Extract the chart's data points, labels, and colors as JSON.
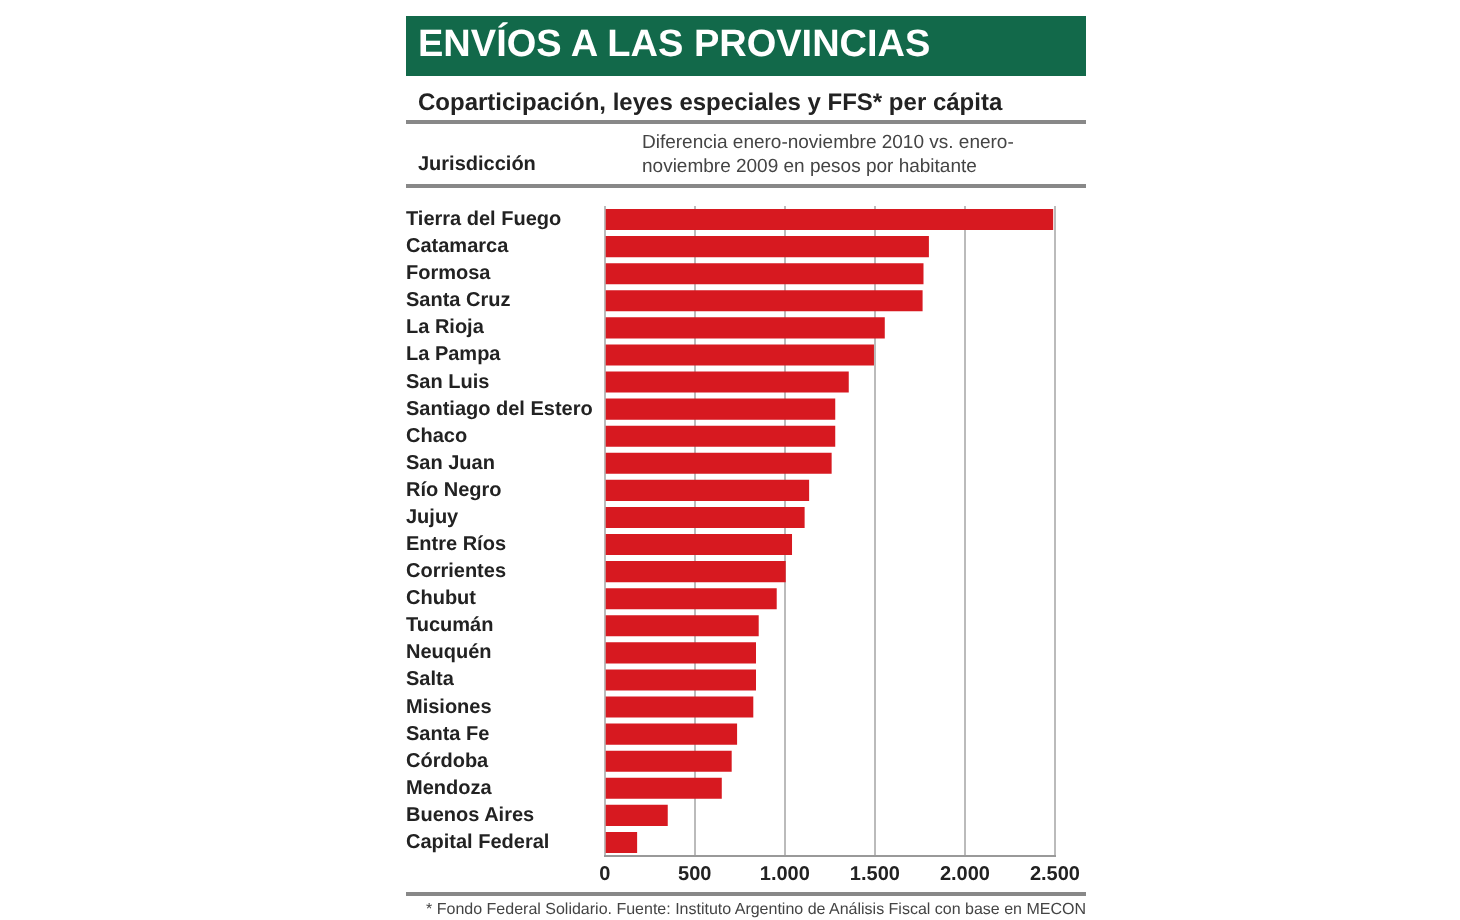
{
  "chart_data": {
    "type": "bar",
    "orientation": "horizontal",
    "title": "ENVÍOS A LAS PROVINCIAS",
    "subtitle": "Coparticipación, leyes especiales y FFS* per cápita",
    "ylabel": "Jurisdicción",
    "xlabel": "Diferencia enero-noviembre 2010 vs. enero-noviembre 2009 en pesos por habitante",
    "categories": [
      "Tierra del Fuego",
      "Catamarca",
      "Formosa",
      "Santa Cruz",
      "La Rioja",
      "La Pampa",
      "San Luis",
      "Santiago del Estero",
      "Chaco",
      "San Juan",
      "Río Negro",
      "Jujuy",
      "Entre Ríos",
      "Corrientes",
      "Chubut",
      "Tucumán",
      "Neuquén",
      "Salta",
      "Misiones",
      "Santa Fe",
      "Córdoba",
      "Mendoza",
      "Buenos Aires",
      "Capital Federal"
    ],
    "values": [
      2490,
      1800,
      1770,
      1765,
      1555,
      1495,
      1355,
      1280,
      1280,
      1260,
      1135,
      1110,
      1040,
      1005,
      955,
      855,
      840,
      840,
      825,
      735,
      705,
      650,
      350,
      180
    ],
    "color": "#d71920",
    "xlim": [
      0,
      2500
    ],
    "xticks": [
      0,
      500,
      {
        "value": 1000,
        "label": "1.000"
      },
      {
        "value": 1500,
        "label": "1.500"
      },
      {
        "value": 2000,
        "label": "2.000"
      },
      {
        "value": 2500,
        "label": "2.500"
      }
    ],
    "grid": "x",
    "annotations": [
      "* Fondo Federal Solidario. Fuente: Instituto Argentino de Análisis Fiscal con base en MECON"
    ]
  }
}
